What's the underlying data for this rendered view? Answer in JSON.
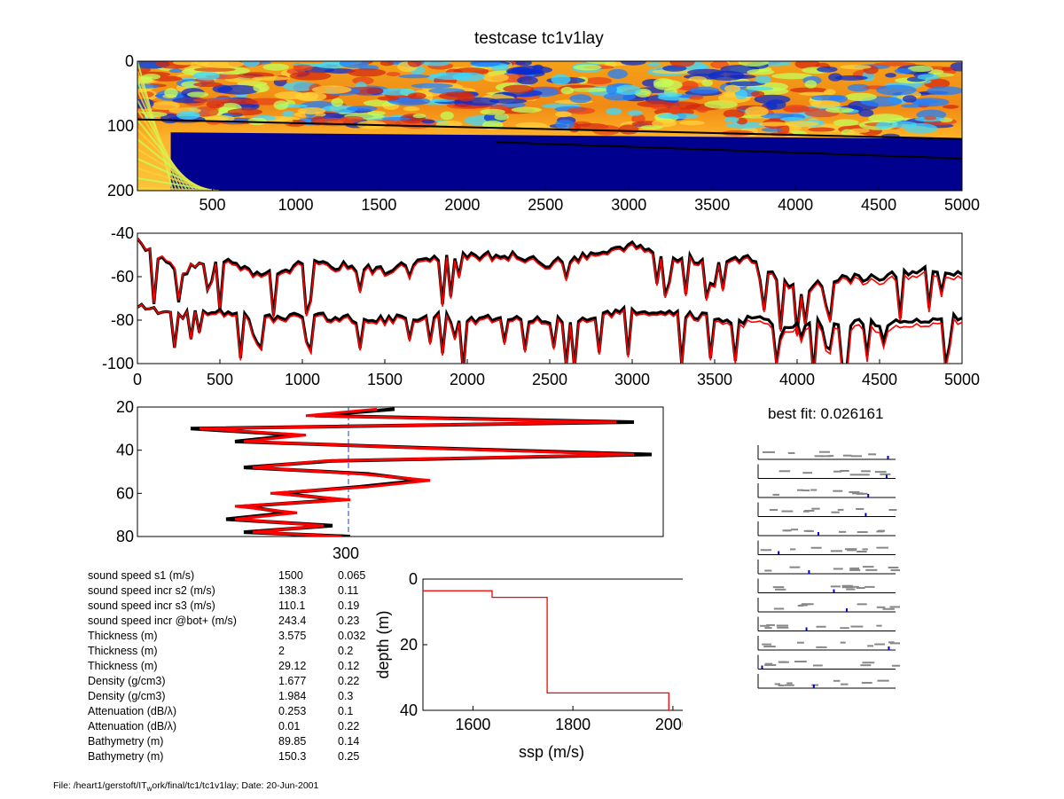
{
  "title": "testcase tc1v1lay",
  "panel1": {
    "ylim": [
      0,
      200
    ],
    "xlim": [
      50,
      5000
    ],
    "xticks": [
      500,
      1000,
      1500,
      2000,
      2500,
      3000,
      3500,
      4000,
      4500,
      5000
    ],
    "yticks": [
      0,
      100,
      200
    ],
    "interface_lines": [
      {
        "x": [
          50,
          5000
        ],
        "y": [
          89.85,
          120
        ]
      },
      {
        "x": [
          50,
          5000
        ],
        "y": [
          150.3,
          150.3
        ]
      }
    ]
  },
  "chart_data": [
    {
      "type": "heatmap",
      "title": "testcase tc1v1lay",
      "xlim": [
        50,
        5000
      ],
      "ylim": [
        0,
        200
      ],
      "xticks": [
        500,
        1000,
        1500,
        2000,
        2500,
        3000,
        3500,
        4000,
        4500,
        5000
      ],
      "yticks": [
        0,
        100,
        200
      ]
    },
    {
      "type": "line",
      "xlim": [
        0,
        5000
      ],
      "ylim": [
        -100,
        -40
      ],
      "xticks": [
        0,
        500,
        1000,
        1500,
        2000,
        2500,
        3000,
        3500,
        4000,
        4500,
        5000
      ],
      "yticks": [
        -40,
        -60,
        -80,
        -100
      ],
      "series": [
        {
          "color": "#000000",
          "x": [
            0,
            250,
            500,
            750,
            1000,
            1250,
            1500,
            1750,
            2000,
            2250,
            2500,
            2750,
            3000,
            3250,
            3500,
            3750,
            4000,
            4250,
            4500,
            4750,
            5000
          ],
          "values": [
            -43,
            -58,
            -52,
            -60,
            -54,
            -55,
            -57,
            -52,
            -51,
            -50,
            -54,
            -50,
            -46,
            -51,
            -53,
            -52,
            -67,
            -61,
            -60,
            -57,
            -59
          ]
        },
        {
          "color": "#ff0000",
          "x": [
            0,
            250,
            500,
            750,
            1000,
            1250,
            1500,
            1750,
            2000,
            2250,
            2500,
            2750,
            3000,
            3250,
            3500,
            3750,
            4000,
            4250,
            4500,
            4750,
            5000
          ],
          "values": [
            -43,
            -57,
            -53,
            -61,
            -55,
            -56,
            -58,
            -53,
            -52,
            -51,
            -55,
            -51,
            -47,
            -52,
            -54,
            -53,
            -68,
            -62,
            -62,
            -59,
            -61
          ]
        },
        {
          "color": "#000000",
          "x": [
            0,
            250,
            500,
            750,
            1000,
            1250,
            1500,
            1750,
            2000,
            2250,
            2500,
            2750,
            3000,
            3250,
            3500,
            3750,
            4000,
            4250,
            4500,
            4750,
            5000
          ],
          "values": [
            -74,
            -78,
            -76,
            -80,
            -77,
            -79,
            -80,
            -78,
            -80,
            -78,
            -80,
            -78,
            -75,
            -77,
            -79,
            -80,
            -82,
            -81,
            -82,
            -80,
            -79
          ]
        },
        {
          "color": "#ff0000",
          "x": [
            0,
            250,
            500,
            750,
            1000,
            1250,
            1500,
            1750,
            2000,
            2250,
            2500,
            2750,
            3000,
            3250,
            3500,
            3750,
            4000,
            4250,
            4500,
            4750,
            5000
          ],
          "values": [
            -74,
            -78,
            -77,
            -81,
            -78,
            -80,
            -81,
            -79,
            -81,
            -79,
            -81,
            -79,
            -76,
            -78,
            -80,
            -82,
            -84,
            -83,
            -85,
            -82,
            -81
          ]
        }
      ]
    },
    {
      "type": "line",
      "ylim": [
        20,
        80
      ],
      "yticks": [
        20,
        40,
        60,
        80
      ],
      "xtick_label": "300",
      "reference_x": 300,
      "series": [
        {
          "color": "#000000",
          "depth": [
            21,
            24,
            27,
            30,
            33,
            36,
            39,
            42,
            45,
            48,
            51,
            54,
            57,
            60,
            63,
            66,
            69,
            72,
            75,
            78,
            80
          ],
          "values": [
            290,
            200,
            560,
            60,
            180,
            110,
            330,
            580,
            220,
            120,
            260,
            320,
            250,
            160,
            230,
            120,
            170,
            100,
            220,
            120,
            240
          ]
        },
        {
          "color": "#ff0000",
          "depth": [
            21,
            24,
            27,
            30,
            33,
            36,
            39,
            42,
            45,
            48,
            51,
            54,
            57,
            60,
            63,
            66,
            69,
            72,
            75,
            78,
            80
          ],
          "values": [
            270,
            190,
            540,
            70,
            190,
            120,
            320,
            560,
            210,
            130,
            250,
            330,
            260,
            150,
            240,
            110,
            180,
            110,
            210,
            130,
            230
          ]
        }
      ]
    },
    {
      "type": "line",
      "xlabel": "ssp (m/s)",
      "ylabel": "depth (m)",
      "xlim": [
        1500,
        2025
      ],
      "ylim": [
        0,
        40
      ],
      "xticks": [
        1600,
        1800,
        2000
      ],
      "yticks": [
        0,
        20,
        40
      ],
      "series": [
        {
          "color": "#ff0000",
          "x": [
            1500,
            1638.3,
            1638.3,
            1748.4,
            1748.4,
            1991.8,
            1991.8
          ],
          "values": [
            3.575,
            3.575,
            5.575,
            5.575,
            34.695,
            34.695,
            40
          ]
        }
      ]
    }
  ],
  "best_fit": "best fit:  0.026161",
  "params": [
    {
      "label": "sound speed s1 (m/s)",
      "value": "1500",
      "sens": "0.065"
    },
    {
      "label": "sound speed incr s2 (m/s)",
      "value": "138.3",
      "sens": "0.11"
    },
    {
      "label": "sound speed incr s3 (m/s)",
      "value": "110.1",
      "sens": "0.19"
    },
    {
      "label": "sound speed incr @bot+ (m/s)",
      "value": "243.4",
      "sens": "0.23"
    },
    {
      "label": "Thickness (m)",
      "value": "3.575",
      "sens": "0.032"
    },
    {
      "label": "Thickness (m)",
      "value": "2",
      "sens": "0.2"
    },
    {
      "label": "Thickness (m)",
      "value": "29.12",
      "sens": "0.12"
    },
    {
      "label": "Density (g/cm3)",
      "value": "1.677",
      "sens": "0.22"
    },
    {
      "label": "Density (g/cm3)",
      "value": "1.984",
      "sens": "0.3"
    },
    {
      "label": "Attenuation (dB/λ)",
      "value": "0.253",
      "sens": "0.1"
    },
    {
      "label": "Attenuation (dB/λ)",
      "value": "0.01",
      "sens": "0.22"
    },
    {
      "label": "Bathymetry (m)",
      "value": "89.85",
      "sens": "0.14"
    },
    {
      "label": "Bathymetry (m)",
      "value": "150.3",
      "sens": "0.25"
    }
  ],
  "footer": {
    "prefix": "File: /heart1/gerstoft/IT",
    "subscript": "w",
    "suffix": "ork/final/tc1/tc1v1lay; Date: 20-Jun-2001"
  },
  "mini_panels": {
    "count": 13,
    "color_line": "#000000",
    "color_marks": "#0000cc"
  }
}
